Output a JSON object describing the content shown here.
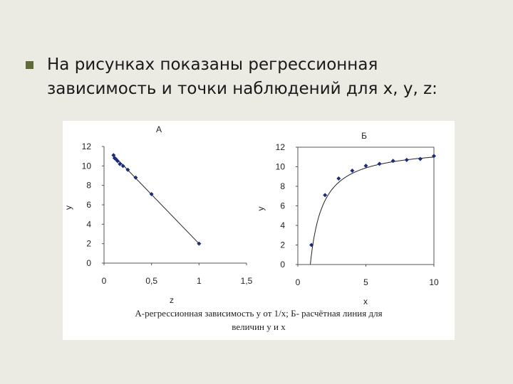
{
  "slide": {
    "bullet_icon": "square-bullet",
    "heading_line1": "На рисунках показаны регрессионная",
    "heading_line2": "зависимость и точки наблюдений для x, y, z:",
    "caption_line1": "А-регрессионная зависимость y от 1/x; Б- расчётная линия для",
    "caption_line2": "величин y и x"
  },
  "chart_data": [
    {
      "type": "scatter",
      "title": "А",
      "xlabel": "z",
      "ylabel": "y",
      "xlim": [
        0,
        1.5
      ],
      "ylim": [
        0,
        12
      ],
      "xticks": [
        "0",
        "0,5",
        "1",
        "1,5"
      ],
      "yticks": [
        "0",
        "2",
        "4",
        "6",
        "8",
        "10",
        "12"
      ],
      "points": [
        [
          0.1,
          11.1
        ],
        [
          0.111,
          10.8
        ],
        [
          0.125,
          10.7
        ],
        [
          0.143,
          10.5
        ],
        [
          0.167,
          10.2
        ],
        [
          0.2,
          10.0
        ],
        [
          0.25,
          9.6
        ],
        [
          0.333,
          8.8
        ],
        [
          0.5,
          7.1
        ],
        [
          1.0,
          2.0
        ]
      ],
      "fit": {
        "x1": 0.1,
        "y1": 11.1,
        "x2": 1.0,
        "y2": 2.0
      },
      "grid": false
    },
    {
      "type": "scatter",
      "title": "Б",
      "xlabel": "x",
      "ylabel": "y",
      "xlim": [
        0,
        10
      ],
      "ylim": [
        0,
        12
      ],
      "xticks": [
        "0",
        "5",
        "10"
      ],
      "yticks": [
        "0",
        "2",
        "4",
        "6",
        "8",
        "10",
        "12"
      ],
      "points": [
        [
          1,
          2.0
        ],
        [
          2,
          7.1
        ],
        [
          3,
          8.8
        ],
        [
          4,
          9.6
        ],
        [
          5,
          10.1
        ],
        [
          6,
          10.3
        ],
        [
          7,
          10.6
        ],
        [
          8,
          10.7
        ],
        [
          9,
          10.8
        ],
        [
          10,
          11.1
        ]
      ],
      "curve": {
        "a": 12.1,
        "b": 11.1
      },
      "grid": false
    }
  ]
}
